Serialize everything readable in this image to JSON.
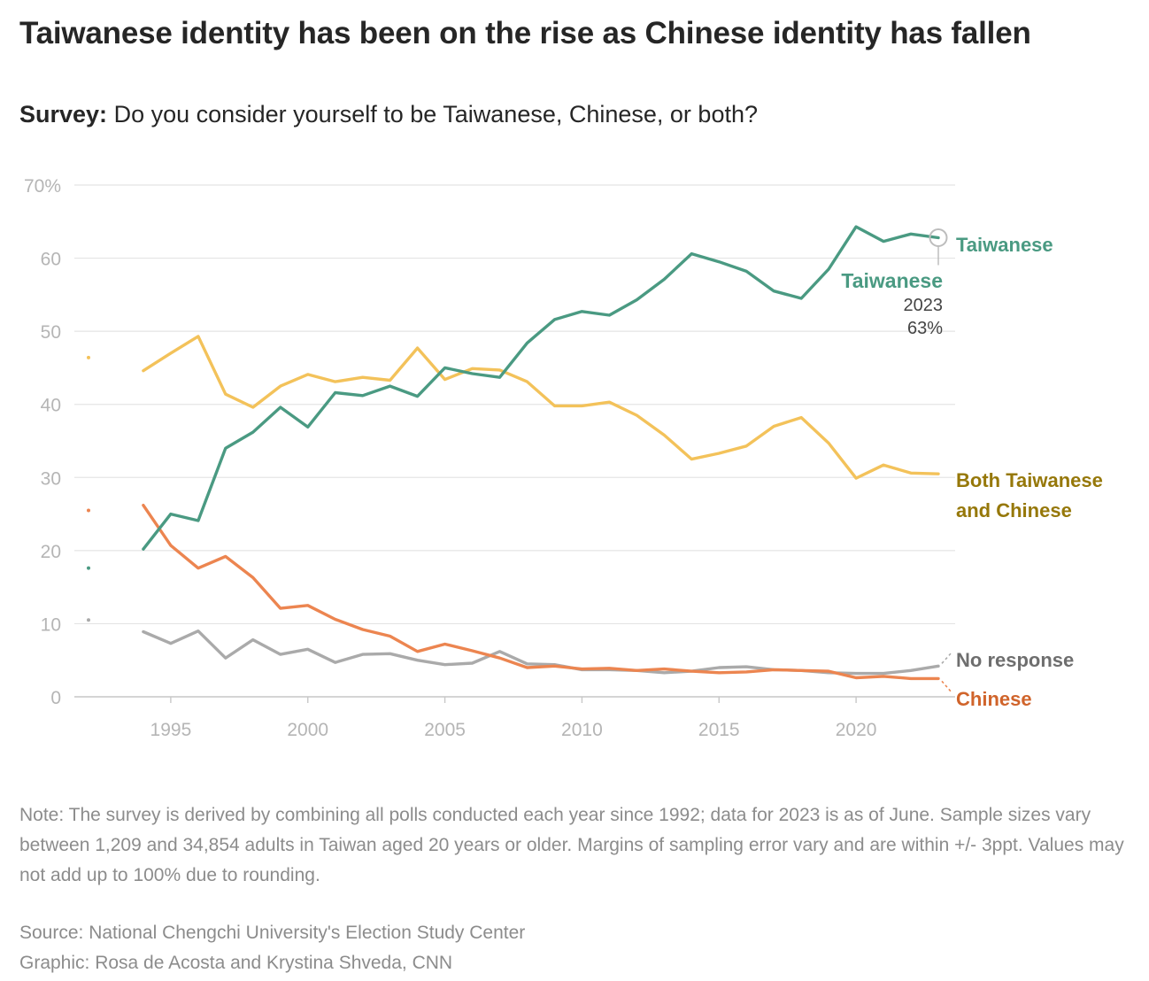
{
  "header": {
    "title": "Taiwanese identity has been on the rise as Chinese identity has fallen",
    "subtitle_bold": "Survey:",
    "subtitle_text": " Do you consider yourself to be Taiwanese, Chinese, or both?"
  },
  "colors": {
    "taiwanese": "#4a9a82",
    "both": "#f3c25a",
    "both_label": "#96780a",
    "chinese": "#ec8550",
    "chinese_label": "#d0642b",
    "no_response": "#aaaaaa",
    "no_response_label": "#6e6e6e",
    "grid": "#e4e4e4",
    "axis_text": "#b5b5b5"
  },
  "chart_data": {
    "type": "line",
    "title": "Taiwanese identity has been on the rise as Chinese identity has fallen",
    "xlabel": "",
    "ylabel": "",
    "xlim": [
      1992,
      2023
    ],
    "ylim": [
      0,
      70
    ],
    "x_ticks": [
      1995,
      2000,
      2005,
      2010,
      2015,
      2020
    ],
    "y_ticks": [
      0,
      10,
      20,
      30,
      40,
      50,
      60,
      70
    ],
    "y_tick_labels": [
      "0",
      "10",
      "20",
      "30",
      "40",
      "50",
      "60",
      "70%"
    ],
    "grid": true,
    "series": [
      {
        "name": "Taiwanese",
        "key": "taiwanese",
        "start_1992": 17.6,
        "x": [
          1994,
          1995,
          1996,
          1997,
          1998,
          1999,
          2000,
          2001,
          2002,
          2003,
          2004,
          2005,
          2006,
          2007,
          2008,
          2009,
          2010,
          2011,
          2012,
          2013,
          2014,
          2015,
          2016,
          2017,
          2018,
          2019,
          2020,
          2021,
          2022,
          2023
        ],
        "values": [
          20.2,
          25.0,
          24.1,
          34.0,
          36.2,
          39.6,
          36.9,
          41.6,
          41.2,
          42.5,
          41.1,
          45.0,
          44.2,
          43.7,
          48.4,
          51.6,
          52.7,
          52.2,
          54.3,
          57.1,
          60.6,
          59.5,
          58.2,
          55.5,
          54.5,
          58.5,
          64.3,
          62.3,
          63.3,
          62.8
        ]
      },
      {
        "name": "Both Taiwanese and Chinese",
        "key": "both",
        "start_1992": 46.4,
        "x": [
          1994,
          1995,
          1996,
          1997,
          1998,
          1999,
          2000,
          2001,
          2002,
          2003,
          2004,
          2005,
          2006,
          2007,
          2008,
          2009,
          2010,
          2011,
          2012,
          2013,
          2014,
          2015,
          2016,
          2017,
          2018,
          2019,
          2020,
          2021,
          2022,
          2023
        ],
        "values": [
          44.6,
          47.0,
          49.3,
          41.4,
          39.6,
          42.5,
          44.1,
          43.1,
          43.7,
          43.3,
          47.7,
          43.4,
          44.9,
          44.7,
          43.1,
          39.8,
          39.8,
          40.3,
          38.5,
          35.8,
          32.5,
          33.3,
          34.3,
          37.0,
          38.2,
          34.7,
          29.9,
          31.7,
          30.6,
          30.5
        ]
      },
      {
        "name": "Chinese",
        "key": "chinese",
        "start_1992": 25.5,
        "x": [
          1994,
          1995,
          1996,
          1997,
          1998,
          1999,
          2000,
          2001,
          2002,
          2003,
          2004,
          2005,
          2006,
          2007,
          2008,
          2009,
          2010,
          2011,
          2012,
          2013,
          2014,
          2015,
          2016,
          2017,
          2018,
          2019,
          2020,
          2021,
          2022,
          2023
        ],
        "values": [
          26.2,
          20.7,
          17.6,
          19.2,
          16.3,
          12.1,
          12.5,
          10.6,
          9.2,
          8.3,
          6.2,
          7.2,
          6.3,
          5.3,
          4.0,
          4.2,
          3.8,
          3.9,
          3.6,
          3.8,
          3.5,
          3.3,
          3.4,
          3.7,
          3.6,
          3.5,
          2.6,
          2.8,
          2.5,
          2.5
        ]
      },
      {
        "name": "No response",
        "key": "no_response",
        "start_1992": 10.5,
        "x": [
          1994,
          1995,
          1996,
          1997,
          1998,
          1999,
          2000,
          2001,
          2002,
          2003,
          2004,
          2005,
          2006,
          2007,
          2008,
          2009,
          2010,
          2011,
          2012,
          2013,
          2014,
          2015,
          2016,
          2017,
          2018,
          2019,
          2020,
          2021,
          2022,
          2023
        ],
        "values": [
          8.9,
          7.3,
          9.0,
          5.3,
          7.8,
          5.8,
          6.5,
          4.7,
          5.8,
          5.9,
          5.0,
          4.4,
          4.6,
          6.2,
          4.5,
          4.4,
          3.7,
          3.7,
          3.6,
          3.3,
          3.5,
          4.0,
          4.1,
          3.7,
          3.6,
          3.3,
          3.2,
          3.2,
          3.6,
          4.2
        ]
      }
    ],
    "annotation": {
      "series": "Taiwanese",
      "name": "Taiwanese",
      "year": "2023",
      "value": "63%"
    },
    "end_labels": {
      "taiwanese": "Taiwanese",
      "both_line1": "Both Taiwanese",
      "both_line2": "and Chinese",
      "no_response": "No response",
      "chinese": "Chinese"
    }
  },
  "footer": {
    "note": "Note: The survey is derived by combining all polls conducted each year since 1992; data for 2023 is as of June. Sample sizes vary between 1,209 and 34,854 adults in Taiwan aged 20 years or older. Margins of sampling error vary and are within +/- 3ppt. Values may not add up to 100% due to rounding.",
    "source": "Source: National Chengchi University's Election Study Center",
    "graphic": "Graphic: Rosa de Acosta and Krystina Shveda, CNN"
  }
}
